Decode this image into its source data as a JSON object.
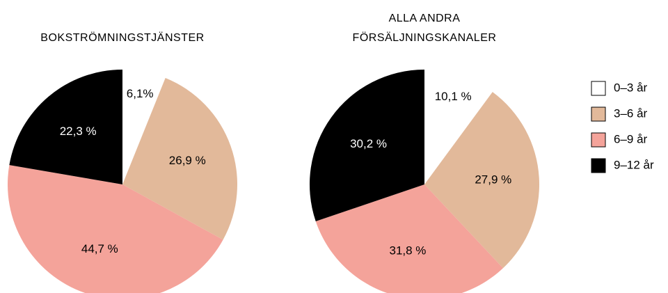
{
  "chart_data": [
    {
      "type": "pie",
      "title": [
        "BOKSTRÖMNINGSTJÄNSTER"
      ],
      "categories": [
        "0–3 år",
        "3–6 år",
        "6–9 år",
        "9–12 år"
      ],
      "values": [
        6.1,
        26.9,
        44.7,
        22.3
      ],
      "value_labels": [
        "6,1%",
        "26,9 %",
        "44,7 %",
        "22,3 %"
      ],
      "colors": [
        "#ffffff",
        "#e2b99a",
        "#f4a39a",
        "#000000"
      ],
      "legend": "right"
    },
    {
      "type": "pie",
      "title": [
        "ALLA ANDRA",
        "FÖRSÄLJNINGSKANALER"
      ],
      "categories": [
        "0–3 år",
        "3–6 år",
        "6–9 år",
        "9–12 år"
      ],
      "values": [
        10.1,
        27.9,
        31.8,
        30.2
      ],
      "value_labels": [
        "10,1 %",
        "27,9 %",
        "31,8 %",
        "30,2 %"
      ],
      "colors": [
        "#ffffff",
        "#e2b99a",
        "#f4a39a",
        "#000000"
      ]
    }
  ]
}
